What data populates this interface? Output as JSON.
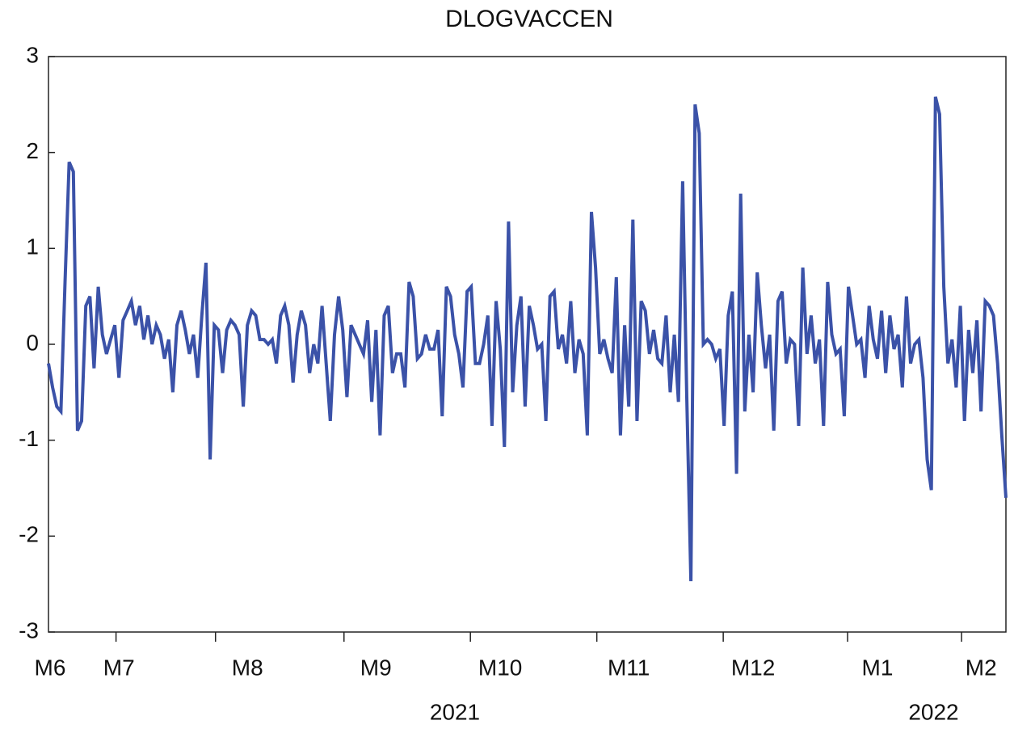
{
  "chart_data": {
    "type": "line",
    "title": "DLOGVACCEN",
    "categories": [
      "M6",
      null,
      null,
      null,
      null,
      null,
      null,
      null,
      null,
      null,
      null,
      null,
      null,
      null,
      null,
      null,
      null,
      "M7",
      null,
      null,
      null,
      null,
      null,
      null,
      null,
      null,
      null,
      null,
      null,
      null,
      null,
      null,
      null,
      null,
      null,
      null,
      null,
      null,
      null,
      null,
      null,
      null,
      null,
      null,
      null,
      null,
      null,
      null,
      "M8",
      null,
      null,
      null,
      null,
      null,
      null,
      null,
      null,
      null,
      null,
      null,
      null,
      null,
      null,
      null,
      null,
      null,
      null,
      null,
      null,
      null,
      null,
      null,
      null,
      null,
      null,
      null,
      null,
      null,
      null,
      "M9",
      null,
      null,
      null,
      null,
      null,
      null,
      null,
      null,
      null,
      null,
      null,
      null,
      null,
      null,
      null,
      null,
      null,
      null,
      null,
      null,
      null,
      null,
      null,
      null,
      null,
      null,
      null,
      null,
      null,
      "M10",
      null,
      null,
      null,
      null,
      null,
      null,
      null,
      null,
      null,
      null,
      null,
      null,
      null,
      null,
      null,
      null,
      null,
      null,
      null,
      null,
      null,
      null,
      null,
      null,
      null,
      null,
      null,
      null,
      null,
      null,
      "M11",
      null,
      null,
      null,
      null,
      null,
      null,
      null,
      null,
      null,
      null,
      null,
      null,
      null,
      null,
      null,
      null,
      null,
      null,
      null,
      null,
      null,
      null,
      null,
      null,
      null,
      null,
      null,
      null,
      null,
      "M12",
      null,
      null,
      null,
      null,
      null,
      null,
      null,
      null,
      null,
      null,
      null,
      null,
      null,
      null,
      null,
      null,
      null,
      null,
      null,
      null,
      null,
      null,
      null,
      null,
      null,
      null,
      null,
      null,
      null,
      "M1",
      null,
      null,
      null,
      null,
      null,
      null,
      null,
      null,
      null,
      null,
      null,
      null,
      null,
      null,
      null,
      null,
      null,
      null,
      null,
      null,
      null,
      null,
      null,
      null,
      "M2",
      null,
      null,
      null,
      null,
      null,
      null
    ],
    "x_groups": [
      "2021",
      "2022"
    ],
    "series": [
      {
        "name": "DLOGVACCEN",
        "color": "#3b52a8",
        "values": [
          -0.2,
          -0.45,
          -0.65,
          -0.7,
          0.65,
          1.9,
          1.8,
          -0.9,
          -0.8,
          0.4,
          0.5,
          -0.25,
          0.6,
          0.1,
          -0.1,
          0.05,
          0.2,
          -0.35,
          0.25,
          0.35,
          0.45,
          0.2,
          0.4,
          0.05,
          0.3,
          0.0,
          0.2,
          0.1,
          -0.15,
          0.05,
          -0.5,
          0.2,
          0.35,
          0.15,
          -0.1,
          0.1,
          -0.35,
          0.3,
          0.85,
          -1.2,
          0.2,
          0.15,
          -0.3,
          0.15,
          0.25,
          0.2,
          0.1,
          -0.65,
          0.2,
          0.35,
          0.3,
          0.05,
          0.05,
          0.0,
          0.05,
          -0.2,
          0.3,
          0.4,
          0.2,
          -0.4,
          0.1,
          0.35,
          0.2,
          -0.3,
          0.0,
          -0.2,
          0.4,
          -0.2,
          -0.8,
          0.1,
          0.5,
          0.15,
          -0.55,
          0.2,
          0.1,
          0.0,
          -0.1,
          0.25,
          -0.6,
          0.15,
          -0.95,
          0.3,
          0.4,
          -0.3,
          -0.1,
          -0.1,
          -0.45,
          0.65,
          0.5,
          -0.15,
          -0.1,
          0.1,
          -0.05,
          -0.05,
          0.15,
          -0.75,
          0.6,
          0.5,
          0.1,
          -0.1,
          -0.45,
          0.55,
          0.6,
          -0.2,
          -0.2,
          0.0,
          0.3,
          -0.85,
          0.45,
          -0.05,
          -1.07,
          1.28,
          -0.5,
          0.2,
          0.5,
          -0.65,
          0.4,
          0.2,
          -0.05,
          0.0,
          -0.8,
          0.5,
          0.55,
          -0.05,
          0.1,
          -0.2,
          0.45,
          -0.3,
          0.05,
          -0.1,
          -0.95,
          1.38,
          0.8,
          -0.1,
          0.05,
          -0.15,
          -0.3,
          0.7,
          -0.95,
          0.2,
          -0.65,
          1.3,
          -0.8,
          0.45,
          0.35,
          -0.1,
          0.15,
          -0.15,
          -0.2,
          0.3,
          -0.5,
          0.1,
          -0.6,
          1.7,
          -0.55,
          -2.47,
          2.5,
          2.2,
          0.0,
          0.05,
          0.0,
          -0.15,
          -0.05,
          -0.85,
          0.3,
          0.55,
          -1.35,
          1.57,
          -0.7,
          0.1,
          -0.5,
          0.75,
          0.2,
          -0.25,
          0.1,
          -0.9,
          0.45,
          0.55,
          -0.2,
          0.05,
          0.0,
          -0.85,
          0.8,
          -0.1,
          0.3,
          -0.2,
          0.05,
          -0.85,
          0.65,
          0.1,
          -0.1,
          -0.05,
          -0.75,
          0.6,
          0.3,
          0.0,
          0.05,
          -0.35,
          0.4,
          0.05,
          -0.15,
          0.35,
          -0.3,
          0.3,
          -0.05,
          0.1,
          -0.45,
          0.5,
          -0.2,
          0.0,
          0.05,
          -0.35,
          -1.2,
          -1.52,
          2.58,
          2.4,
          0.6,
          -0.2,
          0.05,
          -0.45,
          0.4,
          -0.8,
          0.15,
          -0.3,
          0.25,
          -0.7,
          0.45,
          0.4,
          0.3,
          -0.2,
          -0.95,
          -1.6
        ]
      }
    ],
    "ylim": [
      -3,
      3
    ],
    "yticks": [
      -3,
      -2,
      -1,
      0,
      1,
      2,
      3
    ],
    "grid": false
  }
}
